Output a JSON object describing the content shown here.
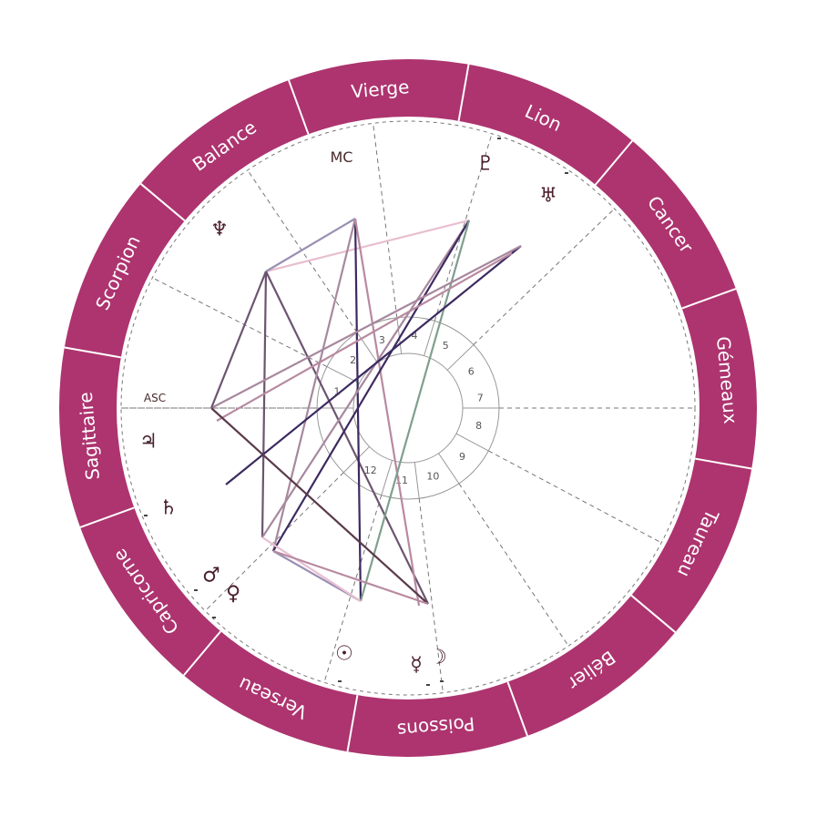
{
  "signs": [
    "Vierge",
    "Lion",
    "Cancer",
    "Gémeaux",
    "Taureau",
    "Bélier",
    "Poissons",
    "Verseau",
    "Capricorne",
    "Sagittaire",
    "Scorpion",
    "Balance"
  ],
  "axes": {
    "asc": "ASC",
    "mc": "MC"
  },
  "houses": [
    "1",
    "2",
    "3",
    "4",
    "5",
    "6",
    "7",
    "8",
    "9",
    "10",
    "11",
    "12"
  ],
  "planets": [
    {
      "name": "pluto-icon",
      "glyph": "♇"
    },
    {
      "name": "uranus-icon",
      "glyph": "♅"
    },
    {
      "name": "neptune-icon",
      "glyph": "♆"
    },
    {
      "name": "jupiter-icon",
      "glyph": "♃"
    },
    {
      "name": "saturn-icon",
      "glyph": "♄"
    },
    {
      "name": "mars-icon",
      "glyph": "♂"
    },
    {
      "name": "venus-icon",
      "glyph": "♀"
    },
    {
      "name": "sun-icon",
      "glyph": "☉"
    },
    {
      "name": "mercury-icon",
      "glyph": "☿"
    },
    {
      "name": "moon-icon",
      "glyph": "☽"
    }
  ],
  "colors": {
    "ring": "#ad346f",
    "divider": "#ffffff",
    "dashed": "#777777",
    "aspects": [
      "#e8bfd0",
      "#a7889e",
      "#b88aa0",
      "#6c5470",
      "#3c2a60",
      "#7f9f8e",
      "#9a8fb4",
      "#5a3a4a"
    ]
  }
}
